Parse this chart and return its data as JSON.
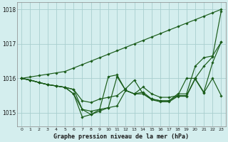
{
  "title": "Graphe pression niveau de la mer (hPa)",
  "background_color": "#d4eeee",
  "grid_color": "#a8cece",
  "line_color": "#1a5c1a",
  "xlim": [
    -0.5,
    23.5
  ],
  "ylim": [
    1014.6,
    1018.2
  ],
  "yticks": [
    1015,
    1016,
    1017,
    1018
  ],
  "xticks": [
    0,
    1,
    2,
    3,
    4,
    5,
    6,
    7,
    8,
    9,
    10,
    11,
    12,
    13,
    14,
    15,
    16,
    17,
    18,
    19,
    20,
    21,
    22,
    23
  ],
  "series": [
    {
      "x": [
        0,
        1,
        2,
        3,
        4,
        5,
        6,
        7,
        8,
        9,
        10,
        11,
        12,
        13,
        14,
        15,
        16,
        17,
        18,
        19,
        20,
        21,
        22,
        23
      ],
      "y": [
        1016.0,
        1016.04,
        1016.08,
        1016.12,
        1016.16,
        1016.2,
        1016.3,
        1016.4,
        1016.5,
        1016.6,
        1016.7,
        1016.8,
        1016.9,
        1017.0,
        1017.1,
        1017.2,
        1017.3,
        1017.4,
        1017.5,
        1017.6,
        1017.7,
        1017.8,
        1017.9,
        1018.0
      ]
    },
    {
      "x": [
        0,
        1,
        2,
        3,
        4,
        5,
        6,
        7,
        8,
        9,
        10,
        11,
        12,
        13,
        14,
        15,
        16,
        17,
        18,
        19,
        20,
        21,
        22,
        23
      ],
      "y": [
        1016.0,
        1015.95,
        1015.88,
        1015.82,
        1015.78,
        1015.74,
        1015.68,
        1015.1,
        1014.95,
        1015.1,
        1015.15,
        1016.05,
        1015.65,
        1015.55,
        1015.75,
        1015.55,
        1015.45,
        1015.45,
        1015.5,
        1015.5,
        1016.0,
        1015.6,
        1016.45,
        1017.05
      ]
    },
    {
      "x": [
        0,
        1,
        2,
        3,
        4,
        5,
        6,
        7,
        8,
        9,
        10,
        11,
        12,
        13,
        14,
        15,
        16,
        17,
        18,
        19,
        20,
        21,
        22,
        23
      ],
      "y": [
        1016.0,
        1015.95,
        1015.88,
        1015.82,
        1015.78,
        1015.74,
        1015.68,
        1015.35,
        1015.3,
        1015.4,
        1015.45,
        1015.5,
        1015.7,
        1015.95,
        1015.55,
        1015.4,
        1015.35,
        1015.35,
        1015.55,
        1015.55,
        1016.35,
        1016.6,
        1016.65,
        1017.05
      ]
    },
    {
      "x": [
        0,
        1,
        2,
        3,
        4,
        5,
        6,
        7,
        8,
        9,
        10,
        11,
        12,
        13,
        14,
        15,
        16,
        17,
        18,
        19,
        20,
        21,
        22,
        23
      ],
      "y": [
        1016.0,
        1015.95,
        1015.88,
        1015.82,
        1015.78,
        1015.74,
        1015.55,
        1014.88,
        1014.95,
        1015.05,
        1015.15,
        1015.2,
        1015.65,
        1015.55,
        1015.55,
        1015.38,
        1015.32,
        1015.32,
        1015.48,
        1015.48,
        1015.98,
        1015.58,
        1016.0,
        1015.5
      ]
    },
    {
      "x": [
        0,
        1,
        2,
        3,
        4,
        5,
        6,
        7,
        8,
        9,
        10,
        11,
        12,
        13,
        14,
        15,
        16,
        17,
        18,
        19,
        20,
        21,
        22,
        23
      ],
      "y": [
        1016.0,
        1015.95,
        1015.88,
        1015.82,
        1015.78,
        1015.74,
        1015.55,
        1015.1,
        1015.05,
        1015.1,
        1016.05,
        1016.1,
        1015.65,
        1015.55,
        1015.6,
        1015.4,
        1015.35,
        1015.35,
        1015.5,
        1016.0,
        1016.0,
        1016.35,
        1016.62,
        1017.95
      ]
    }
  ]
}
